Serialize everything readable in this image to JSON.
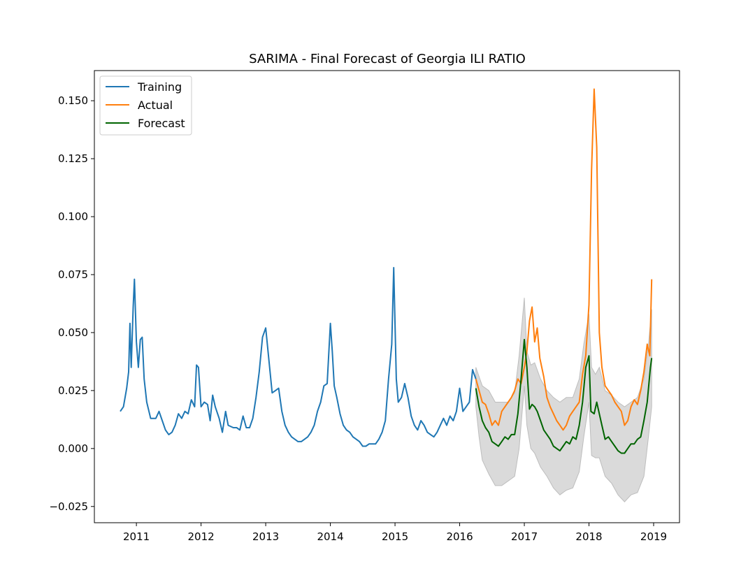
{
  "chart_data": {
    "type": "line",
    "title": "SARIMA - Final Forecast of Georgia ILI RATIO",
    "xlabel": "",
    "ylabel": "",
    "xlim": [
      2010.35,
      2019.4
    ],
    "ylim": [
      -0.032,
      0.163
    ],
    "x_ticks": [
      2011,
      2012,
      2013,
      2014,
      2015,
      2016,
      2017,
      2018,
      2019
    ],
    "x_tick_labels": [
      "2011",
      "2012",
      "2013",
      "2014",
      "2015",
      "2016",
      "2017",
      "2018",
      "2019"
    ],
    "y_ticks": [
      -0.025,
      0.0,
      0.025,
      0.05,
      0.075,
      0.1,
      0.125,
      0.15
    ],
    "y_tick_labels": [
      "−0.025",
      "0.000",
      "0.025",
      "0.050",
      "0.075",
      "0.100",
      "0.125",
      "0.150"
    ],
    "grid": false,
    "legend_position": "top-left",
    "series": [
      {
        "name": "Training",
        "color": "#1f77b4",
        "points": [
          [
            2010.75,
            0.016
          ],
          [
            2010.8,
            0.018
          ],
          [
            2010.85,
            0.026
          ],
          [
            2010.88,
            0.033
          ],
          [
            2010.9,
            0.054
          ],
          [
            2010.92,
            0.035
          ],
          [
            2010.95,
            0.061
          ],
          [
            2010.97,
            0.073
          ],
          [
            2011.0,
            0.046
          ],
          [
            2011.03,
            0.035
          ],
          [
            2011.06,
            0.047
          ],
          [
            2011.09,
            0.048
          ],
          [
            2011.12,
            0.03
          ],
          [
            2011.16,
            0.02
          ],
          [
            2011.22,
            0.013
          ],
          [
            2011.3,
            0.013
          ],
          [
            2011.35,
            0.016
          ],
          [
            2011.4,
            0.012
          ],
          [
            2011.45,
            0.008
          ],
          [
            2011.5,
            0.006
          ],
          [
            2011.55,
            0.007
          ],
          [
            2011.6,
            0.01
          ],
          [
            2011.65,
            0.015
          ],
          [
            2011.7,
            0.013
          ],
          [
            2011.75,
            0.016
          ],
          [
            2011.8,
            0.015
          ],
          [
            2011.85,
            0.021
          ],
          [
            2011.9,
            0.018
          ],
          [
            2011.93,
            0.036
          ],
          [
            2011.96,
            0.035
          ],
          [
            2012.0,
            0.018
          ],
          [
            2012.05,
            0.02
          ],
          [
            2012.1,
            0.019
          ],
          [
            2012.14,
            0.012
          ],
          [
            2012.18,
            0.023
          ],
          [
            2012.22,
            0.018
          ],
          [
            2012.28,
            0.013
          ],
          [
            2012.33,
            0.007
          ],
          [
            2012.38,
            0.016
          ],
          [
            2012.42,
            0.01
          ],
          [
            2012.5,
            0.009
          ],
          [
            2012.55,
            0.009
          ],
          [
            2012.6,
            0.008
          ],
          [
            2012.65,
            0.014
          ],
          [
            2012.7,
            0.009
          ],
          [
            2012.75,
            0.009
          ],
          [
            2012.8,
            0.013
          ],
          [
            2012.85,
            0.022
          ],
          [
            2012.9,
            0.033
          ],
          [
            2012.95,
            0.048
          ],
          [
            2013.0,
            0.052
          ],
          [
            2013.05,
            0.038
          ],
          [
            2013.1,
            0.024
          ],
          [
            2013.15,
            0.025
          ],
          [
            2013.2,
            0.026
          ],
          [
            2013.25,
            0.016
          ],
          [
            2013.3,
            0.01
          ],
          [
            2013.35,
            0.007
          ],
          [
            2013.4,
            0.005
          ],
          [
            2013.45,
            0.004
          ],
          [
            2013.5,
            0.003
          ],
          [
            2013.55,
            0.003
          ],
          [
            2013.6,
            0.004
          ],
          [
            2013.65,
            0.005
          ],
          [
            2013.7,
            0.007
          ],
          [
            2013.75,
            0.01
          ],
          [
            2013.8,
            0.016
          ],
          [
            2013.85,
            0.02
          ],
          [
            2013.9,
            0.027
          ],
          [
            2013.95,
            0.028
          ],
          [
            2014.0,
            0.054
          ],
          [
            2014.03,
            0.042
          ],
          [
            2014.06,
            0.027
          ],
          [
            2014.1,
            0.022
          ],
          [
            2014.15,
            0.015
          ],
          [
            2014.2,
            0.01
          ],
          [
            2014.25,
            0.008
          ],
          [
            2014.3,
            0.007
          ],
          [
            2014.35,
            0.005
          ],
          [
            2014.4,
            0.004
          ],
          [
            2014.45,
            0.003
          ],
          [
            2014.5,
            0.001
          ],
          [
            2014.55,
            0.001
          ],
          [
            2014.6,
            0.002
          ],
          [
            2014.65,
            0.002
          ],
          [
            2014.7,
            0.002
          ],
          [
            2014.75,
            0.004
          ],
          [
            2014.8,
            0.007
          ],
          [
            2014.85,
            0.012
          ],
          [
            2014.9,
            0.03
          ],
          [
            2014.95,
            0.045
          ],
          [
            2014.98,
            0.078
          ],
          [
            2015.02,
            0.03
          ],
          [
            2015.05,
            0.02
          ],
          [
            2015.1,
            0.022
          ],
          [
            2015.15,
            0.028
          ],
          [
            2015.2,
            0.022
          ],
          [
            2015.25,
            0.014
          ],
          [
            2015.3,
            0.01
          ],
          [
            2015.35,
            0.008
          ],
          [
            2015.4,
            0.012
          ],
          [
            2015.45,
            0.01
          ],
          [
            2015.5,
            0.007
          ],
          [
            2015.55,
            0.006
          ],
          [
            2015.6,
            0.005
          ],
          [
            2015.65,
            0.007
          ],
          [
            2015.7,
            0.01
          ],
          [
            2015.75,
            0.013
          ],
          [
            2015.8,
            0.01
          ],
          [
            2015.85,
            0.014
          ],
          [
            2015.9,
            0.012
          ],
          [
            2015.95,
            0.016
          ],
          [
            2016.0,
            0.026
          ],
          [
            2016.05,
            0.016
          ],
          [
            2016.1,
            0.018
          ],
          [
            2016.15,
            0.02
          ],
          [
            2016.2,
            0.034
          ],
          [
            2016.25,
            0.03
          ]
        ]
      },
      {
        "name": "Actual",
        "color": "#ff7f0e",
        "points": [
          [
            2016.25,
            0.03
          ],
          [
            2016.3,
            0.025
          ],
          [
            2016.35,
            0.02
          ],
          [
            2016.4,
            0.019
          ],
          [
            2016.45,
            0.015
          ],
          [
            2016.5,
            0.01
          ],
          [
            2016.55,
            0.012
          ],
          [
            2016.6,
            0.01
          ],
          [
            2016.65,
            0.016
          ],
          [
            2016.7,
            0.018
          ],
          [
            2016.75,
            0.02
          ],
          [
            2016.8,
            0.022
          ],
          [
            2016.85,
            0.025
          ],
          [
            2016.9,
            0.03
          ],
          [
            2016.95,
            0.028
          ],
          [
            2017.0,
            0.035
          ],
          [
            2017.04,
            0.042
          ],
          [
            2017.08,
            0.055
          ],
          [
            2017.12,
            0.061
          ],
          [
            2017.16,
            0.046
          ],
          [
            2017.2,
            0.052
          ],
          [
            2017.24,
            0.039
          ],
          [
            2017.3,
            0.031
          ],
          [
            2017.35,
            0.022
          ],
          [
            2017.4,
            0.018
          ],
          [
            2017.45,
            0.015
          ],
          [
            2017.5,
            0.012
          ],
          [
            2017.55,
            0.01
          ],
          [
            2017.6,
            0.008
          ],
          [
            2017.65,
            0.01
          ],
          [
            2017.7,
            0.014
          ],
          [
            2017.75,
            0.016
          ],
          [
            2017.8,
            0.018
          ],
          [
            2017.85,
            0.02
          ],
          [
            2017.9,
            0.032
          ],
          [
            2017.95,
            0.04
          ],
          [
            2018.0,
            0.062
          ],
          [
            2018.04,
            0.12
          ],
          [
            2018.08,
            0.155
          ],
          [
            2018.12,
            0.13
          ],
          [
            2018.16,
            0.05
          ],
          [
            2018.2,
            0.035
          ],
          [
            2018.25,
            0.027
          ],
          [
            2018.3,
            0.025
          ],
          [
            2018.35,
            0.023
          ],
          [
            2018.4,
            0.02
          ],
          [
            2018.45,
            0.018
          ],
          [
            2018.5,
            0.016
          ],
          [
            2018.55,
            0.01
          ],
          [
            2018.6,
            0.012
          ],
          [
            2018.65,
            0.018
          ],
          [
            2018.7,
            0.021
          ],
          [
            2018.75,
            0.019
          ],
          [
            2018.8,
            0.025
          ],
          [
            2018.85,
            0.033
          ],
          [
            2018.9,
            0.045
          ],
          [
            2018.94,
            0.04
          ],
          [
            2018.97,
            0.073
          ]
        ]
      },
      {
        "name": "Forecast",
        "color": "#006400",
        "points": [
          [
            2016.25,
            0.026
          ],
          [
            2016.3,
            0.018
          ],
          [
            2016.35,
            0.012
          ],
          [
            2016.4,
            0.009
          ],
          [
            2016.45,
            0.007
          ],
          [
            2016.5,
            0.003
          ],
          [
            2016.55,
            0.002
          ],
          [
            2016.6,
            0.001
          ],
          [
            2016.65,
            0.003
          ],
          [
            2016.7,
            0.005
          ],
          [
            2016.75,
            0.004
          ],
          [
            2016.8,
            0.006
          ],
          [
            2016.85,
            0.006
          ],
          [
            2016.9,
            0.015
          ],
          [
            2016.95,
            0.03
          ],
          [
            2017.0,
            0.047
          ],
          [
            2017.04,
            0.035
          ],
          [
            2017.08,
            0.017
          ],
          [
            2017.12,
            0.019
          ],
          [
            2017.16,
            0.018
          ],
          [
            2017.2,
            0.016
          ],
          [
            2017.25,
            0.012
          ],
          [
            2017.3,
            0.008
          ],
          [
            2017.35,
            0.006
          ],
          [
            2017.4,
            0.004
          ],
          [
            2017.45,
            0.001
          ],
          [
            2017.5,
            0.0
          ],
          [
            2017.55,
            -0.001
          ],
          [
            2017.6,
            0.001
          ],
          [
            2017.65,
            0.003
          ],
          [
            2017.7,
            0.002
          ],
          [
            2017.75,
            0.005
          ],
          [
            2017.8,
            0.004
          ],
          [
            2017.85,
            0.01
          ],
          [
            2017.9,
            0.02
          ],
          [
            2017.95,
            0.035
          ],
          [
            2018.0,
            0.04
          ],
          [
            2018.03,
            0.016
          ],
          [
            2018.08,
            0.015
          ],
          [
            2018.12,
            0.02
          ],
          [
            2018.16,
            0.015
          ],
          [
            2018.2,
            0.01
          ],
          [
            2018.25,
            0.004
          ],
          [
            2018.3,
            0.005
          ],
          [
            2018.35,
            0.003
          ],
          [
            2018.4,
            0.001
          ],
          [
            2018.45,
            -0.001
          ],
          [
            2018.5,
            -0.002
          ],
          [
            2018.55,
            -0.002
          ],
          [
            2018.6,
            0.0
          ],
          [
            2018.65,
            0.002
          ],
          [
            2018.7,
            0.002
          ],
          [
            2018.75,
            0.004
          ],
          [
            2018.8,
            0.005
          ],
          [
            2018.85,
            0.012
          ],
          [
            2018.9,
            0.02
          ],
          [
            2018.95,
            0.035
          ],
          [
            2018.97,
            0.039
          ]
        ]
      }
    ],
    "confidence_band": {
      "color": "#d3d3d3",
      "upper": [
        [
          2016.25,
          0.035
        ],
        [
          2016.35,
          0.027
        ],
        [
          2016.45,
          0.025
        ],
        [
          2016.55,
          0.02
        ],
        [
          2016.65,
          0.02
        ],
        [
          2016.75,
          0.02
        ],
        [
          2016.85,
          0.024
        ],
        [
          2016.92,
          0.04
        ],
        [
          2017.0,
          0.065
        ],
        [
          2017.04,
          0.042
        ],
        [
          2017.1,
          0.036
        ],
        [
          2017.16,
          0.037
        ],
        [
          2017.25,
          0.03
        ],
        [
          2017.35,
          0.025
        ],
        [
          2017.45,
          0.022
        ],
        [
          2017.55,
          0.02
        ],
        [
          2017.65,
          0.022
        ],
        [
          2017.75,
          0.022
        ],
        [
          2017.85,
          0.03
        ],
        [
          2017.92,
          0.045
        ],
        [
          2018.0,
          0.058
        ],
        [
          2018.04,
          0.035
        ],
        [
          2018.1,
          0.032
        ],
        [
          2018.16,
          0.035
        ],
        [
          2018.25,
          0.025
        ],
        [
          2018.35,
          0.023
        ],
        [
          2018.45,
          0.02
        ],
        [
          2018.55,
          0.018
        ],
        [
          2018.65,
          0.02
        ],
        [
          2018.75,
          0.022
        ],
        [
          2018.85,
          0.03
        ],
        [
          2018.92,
          0.045
        ],
        [
          2018.97,
          0.06
        ]
      ],
      "lower": [
        [
          2016.25,
          0.018
        ],
        [
          2016.3,
          0.005
        ],
        [
          2016.35,
          -0.005
        ],
        [
          2016.45,
          -0.011
        ],
        [
          2016.55,
          -0.016
        ],
        [
          2016.65,
          -0.016
        ],
        [
          2016.75,
          -0.014
        ],
        [
          2016.85,
          -0.012
        ],
        [
          2016.92,
          0.0
        ],
        [
          2017.0,
          0.027
        ],
        [
          2017.04,
          0.01
        ],
        [
          2017.1,
          0.0
        ],
        [
          2017.16,
          -0.002
        ],
        [
          2017.25,
          -0.008
        ],
        [
          2017.35,
          -0.012
        ],
        [
          2017.45,
          -0.017
        ],
        [
          2017.55,
          -0.02
        ],
        [
          2017.65,
          -0.018
        ],
        [
          2017.75,
          -0.017
        ],
        [
          2017.85,
          -0.01
        ],
        [
          2017.92,
          0.005
        ],
        [
          2018.0,
          0.02
        ],
        [
          2018.04,
          -0.003
        ],
        [
          2018.1,
          -0.004
        ],
        [
          2018.16,
          -0.004
        ],
        [
          2018.25,
          -0.012
        ],
        [
          2018.35,
          -0.015
        ],
        [
          2018.45,
          -0.02
        ],
        [
          2018.55,
          -0.023
        ],
        [
          2018.65,
          -0.02
        ],
        [
          2018.75,
          -0.019
        ],
        [
          2018.85,
          -0.012
        ],
        [
          2018.92,
          0.005
        ],
        [
          2018.97,
          0.018
        ]
      ]
    }
  }
}
